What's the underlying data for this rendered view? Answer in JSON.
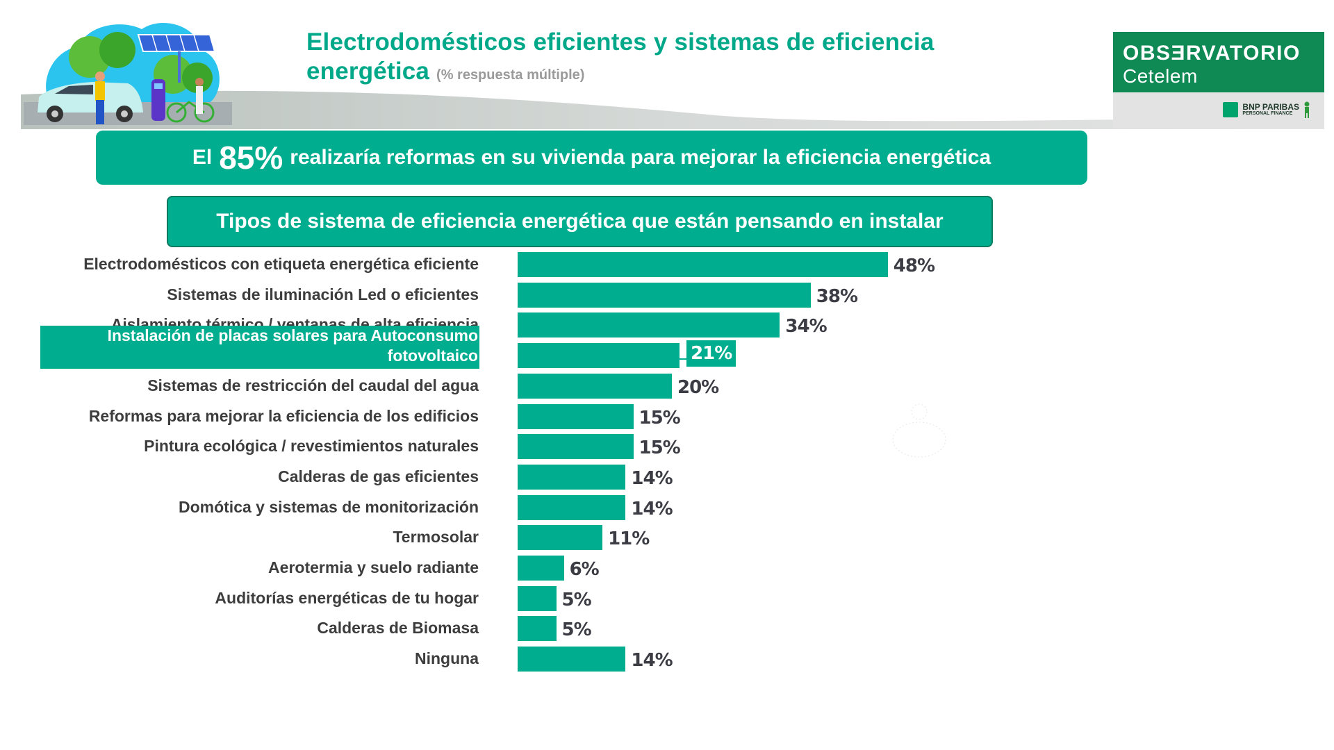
{
  "header": {
    "title_line1": "Electrodomésticos eficientes y sistemas de eficiencia",
    "title_line2": "energética",
    "title_note": "(% respuesta múltiple)"
  },
  "logo": {
    "name_line1": "OBSƎRVATORIO",
    "name_line2": "Cetelem",
    "partner_line1": "BNP PARIBAS",
    "partner_line2": "PERSONAL FINANCE"
  },
  "highlight_banner": {
    "prefix": "El",
    "stat": "85%",
    "text": "realizaría reformas en su vivienda para mejorar la eficiencia energética"
  },
  "section_banner": {
    "text": "Tipos de sistema de eficiencia energética que están pensando en instalar"
  },
  "colors": {
    "brand_green": "#00ad8e",
    "logo_green": "#0f8a55",
    "label_text": "#3d3d3d"
  },
  "chart_data": {
    "type": "bar",
    "orientation": "horizontal",
    "title": "Tipos de sistema de eficiencia energética que están pensando en instalar",
    "xlabel": "",
    "ylabel": "",
    "unit": "%",
    "xlim": [
      0,
      48
    ],
    "grid": false,
    "legend": "none",
    "highlighted_category": "Instalación de placas solares para Autoconsumo fotovoltaico",
    "categories": [
      "Electrodomésticos con etiqueta energética eficiente",
      "Sistemas de iluminación Led o eficientes",
      "Aislamiento térmico / ventanas de alta eficiencia",
      "Instalación de placas solares para Autoconsumo fotovoltaico",
      "Sistemas de restricción del caudal del agua",
      "Reformas para mejorar la eficiencia de los edificios",
      "Pintura ecológica / revestimientos naturales",
      "Calderas de gas eficientes",
      "Domótica y sistemas de monitorización",
      "Termosolar",
      "Aerotermia y suelo radiante",
      "Auditorías energéticas de tu hogar",
      "Calderas de Biomasa",
      "Ninguna"
    ],
    "values": [
      48,
      38,
      34,
      21,
      20,
      15,
      15,
      14,
      14,
      11,
      6,
      5,
      5,
      14
    ],
    "value_labels": [
      "48%",
      "38%",
      "34%",
      "21%",
      "20%",
      "15%",
      "15%",
      "14%",
      "14%",
      "11%",
      "6%",
      "5%",
      "5%",
      "14%"
    ]
  }
}
